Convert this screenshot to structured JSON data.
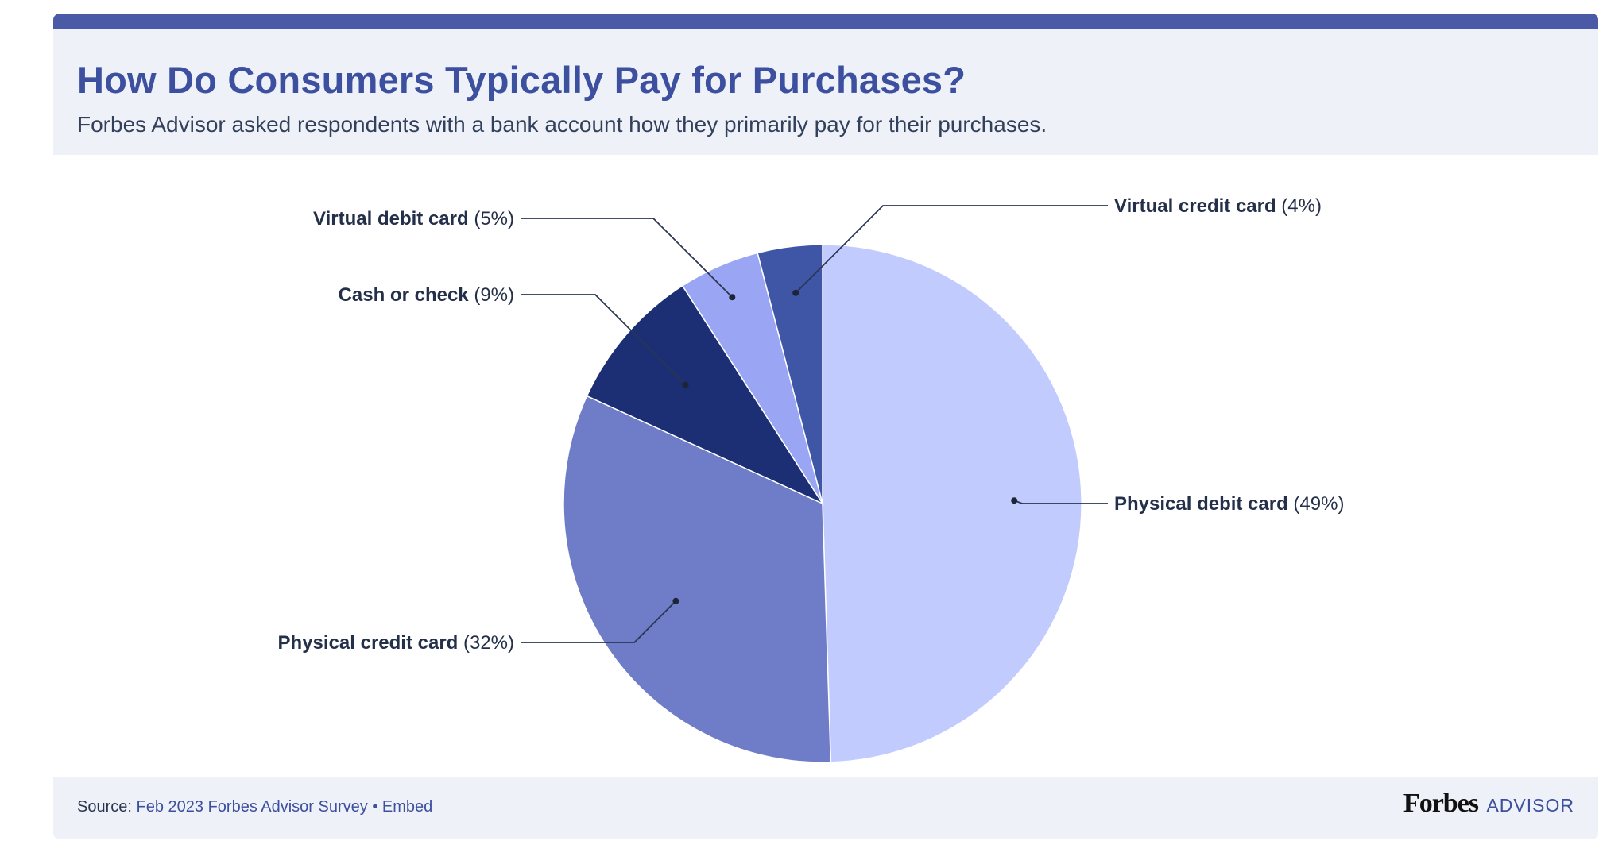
{
  "header": {
    "title": "How Do Consumers Typically Pay for Purchases?",
    "subtitle": "Forbes Advisor asked respondents with a bank account how they primarily pay for their purchases."
  },
  "chart_data": {
    "type": "pie",
    "title": "How Do Consumers Typically Pay for Purchases?",
    "subtitle": "Forbes Advisor asked respondents with a bank account how they primarily pay for their purchases.",
    "unit": "%",
    "slices": [
      {
        "name": "Physical debit card",
        "value": 49,
        "label_value": "(49%)",
        "color": "#c1cbfd"
      },
      {
        "name": "Physical credit card",
        "value": 32,
        "label_value": "(32%)",
        "color": "#6f7dc8"
      },
      {
        "name": "Cash or check",
        "value": 9,
        "label_value": "(9%)",
        "color": "#1c2f74"
      },
      {
        "name": "Virtual debit card",
        "value": 5,
        "label_value": "(5%)",
        "color": "#9aa6f4"
      },
      {
        "name": "Virtual credit card",
        "value": 4,
        "label_value": "(4%)",
        "color": "#3f55a6"
      }
    ]
  },
  "footer": {
    "source_label": "Source:",
    "source_text": "Feb 2023 Forbes Advisor Survey",
    "separator": "•",
    "embed_label": "Embed",
    "brand_main": "Forbes",
    "brand_sub": "ADVISOR"
  },
  "colors": {
    "accent": "#3d4f9f",
    "top_bar": "#4a5aa6",
    "panel_bg": "#eef2f8",
    "text": "#24304a"
  }
}
